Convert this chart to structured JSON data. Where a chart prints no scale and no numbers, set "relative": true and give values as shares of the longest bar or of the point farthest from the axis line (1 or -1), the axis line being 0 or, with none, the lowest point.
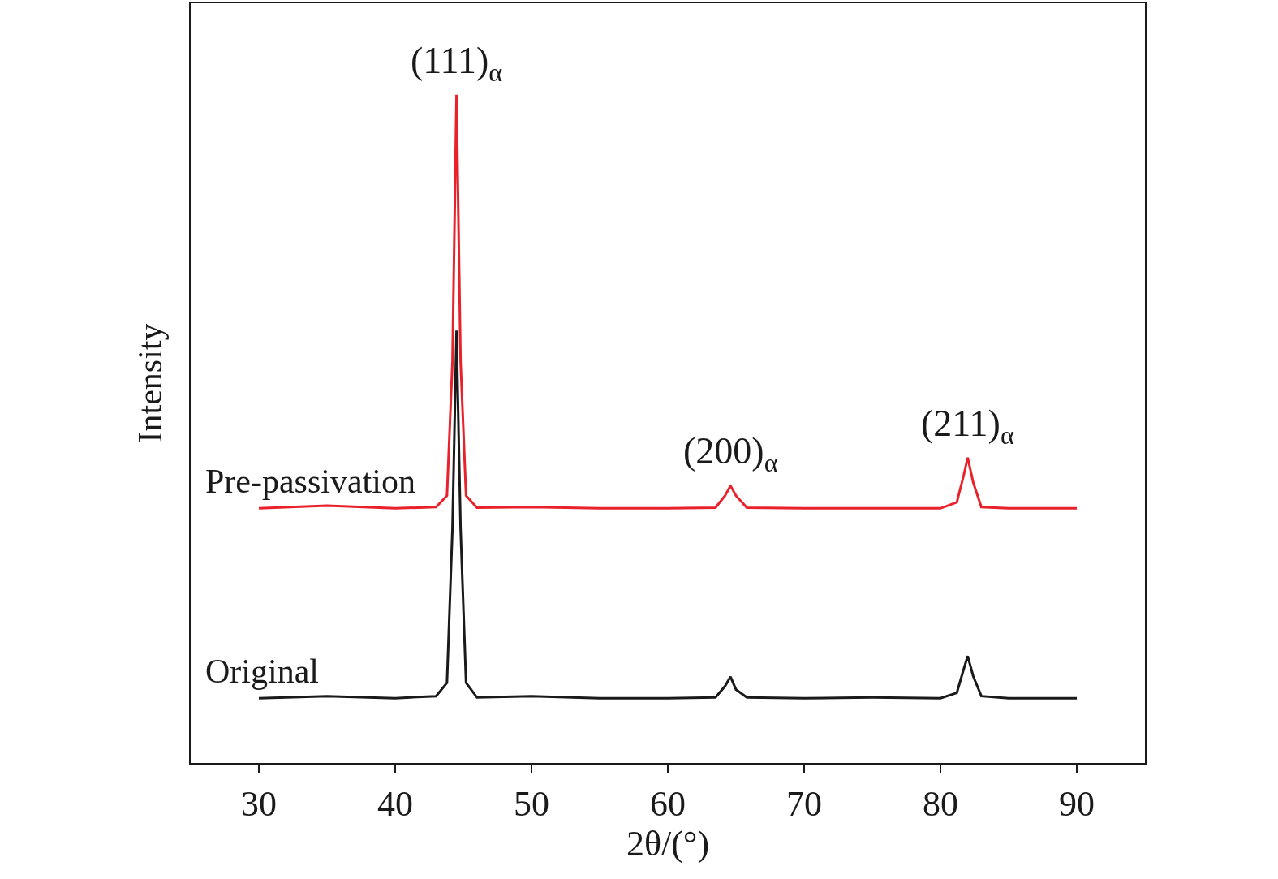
{
  "chart_data": {
    "type": "line",
    "relative": true,
    "xlabel": "2θ/(°)",
    "ylabel": "Intensity",
    "x": [
      30,
      35,
      40,
      43,
      43.8,
      44.2,
      44.5,
      44.8,
      45.2,
      46,
      50,
      55,
      60,
      63.5,
      64.2,
      64.6,
      65,
      65.8,
      70,
      75,
      80,
      81.2,
      81.7,
      82,
      82.4,
      83,
      85,
      90
    ],
    "series": [
      {
        "name": "Pre-passivation",
        "color": "#e8212b",
        "values": [
          0.381,
          0.385,
          0.381,
          0.383,
          0.4,
          0.6,
          1.0,
          0.6,
          0.4,
          0.382,
          0.383,
          0.381,
          0.381,
          0.382,
          0.4,
          0.415,
          0.4,
          0.382,
          0.381,
          0.381,
          0.381,
          0.39,
          0.43,
          0.457,
          0.42,
          0.383,
          0.381,
          0.381
        ]
      },
      {
        "name": "Original",
        "color": "#1a1a1a",
        "values": [
          0.097,
          0.1,
          0.097,
          0.1,
          0.12,
          0.35,
          0.647,
          0.35,
          0.12,
          0.098,
          0.1,
          0.097,
          0.097,
          0.098,
          0.115,
          0.129,
          0.11,
          0.098,
          0.097,
          0.098,
          0.097,
          0.105,
          0.14,
          0.16,
          0.13,
          0.1,
          0.097,
          0.097
        ]
      }
    ],
    "xlim": [
      25,
      95
    ],
    "xticks": [
      30,
      40,
      50,
      60,
      70,
      80,
      90
    ],
    "tick_labels": "x",
    "legend": false,
    "marker": "none",
    "line_style": "solid",
    "annotations": [
      {
        "text": "(111)$_{α}$",
        "x": 44.5,
        "y": 1.0
      },
      {
        "text": "(200)$_{α}$",
        "x": 64.6,
        "y": 0.415
      },
      {
        "text": "(211)$_{α}$",
        "x": 82,
        "y": 0.457
      }
    ]
  }
}
